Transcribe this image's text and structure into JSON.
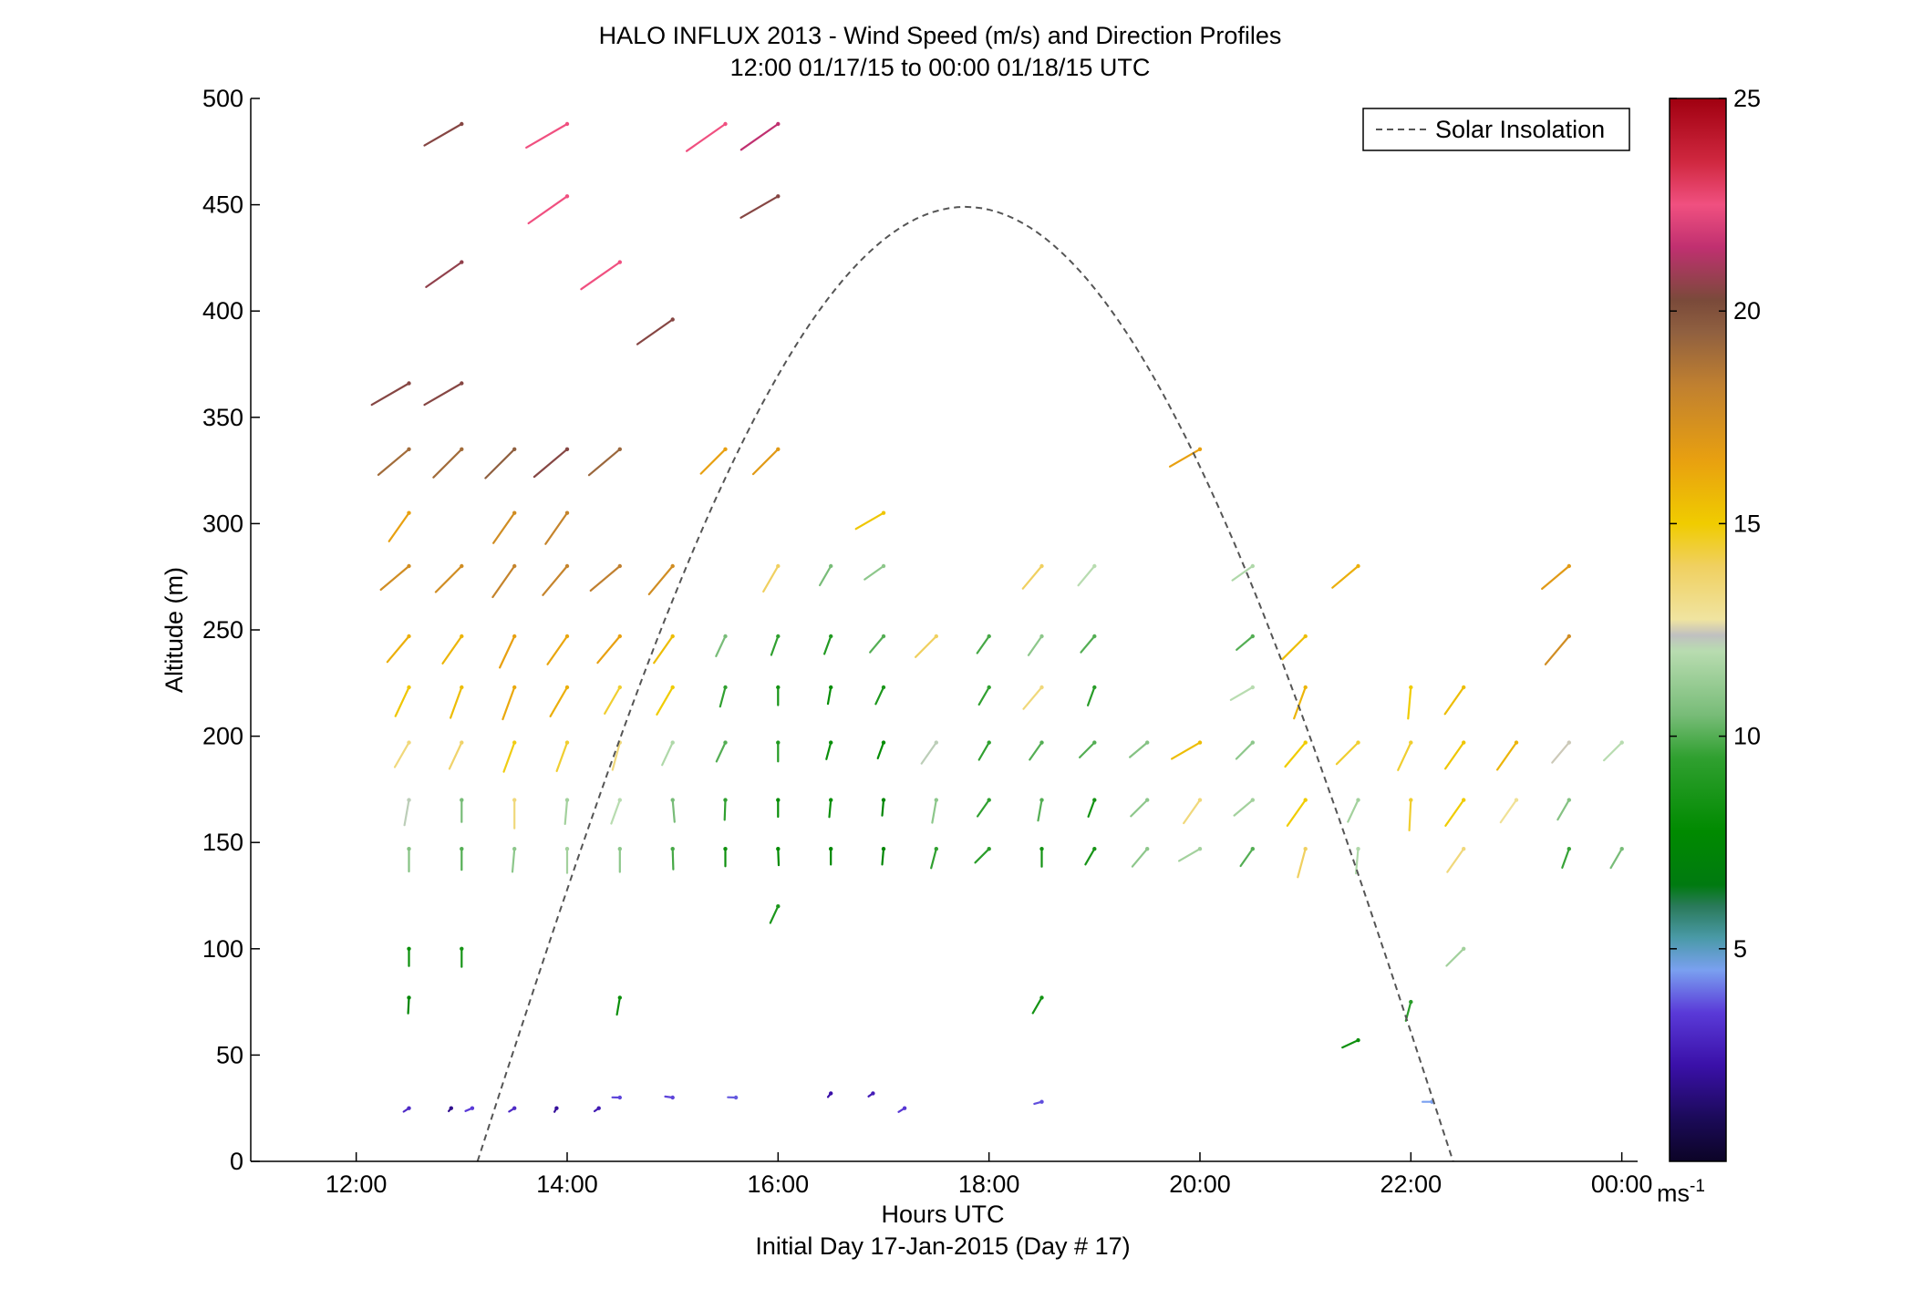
{
  "chart_data": {
    "type": "scatter",
    "title": "HALO INFLUX 2013 - Wind Speed (m/s) and Direction Profiles",
    "subtitle": "12:00 01/17/15 to 00:00 01/18/15  UTC",
    "xlabel": "Hours UTC",
    "xlabel2": "Initial Day 17-Jan-2015 (Day # 17)",
    "ylabel": "Altitude (m)",
    "xlim": [
      11,
      24.15
    ],
    "ylim": [
      0,
      500
    ],
    "xticks": [
      12,
      14,
      16,
      18,
      20,
      22,
      24
    ],
    "xtick_labels": [
      "12:00",
      "14:00",
      "16:00",
      "18:00",
      "20:00",
      "22:00",
      "00:00"
    ],
    "yticks": [
      0,
      50,
      100,
      150,
      200,
      250,
      300,
      350,
      400,
      450,
      500
    ],
    "ytick_labels": [
      "0",
      "50",
      "100",
      "150",
      "200",
      "250",
      "300",
      "350",
      "400",
      "450",
      "500"
    ],
    "colorbar": {
      "range": [
        0,
        25
      ],
      "ticks": [
        5,
        10,
        15,
        20,
        25
      ],
      "tick_labels": [
        "5",
        "10",
        "15",
        "20",
        "25"
      ],
      "unit": "ms",
      "unit_exp": "-1"
    },
    "legend": {
      "position": "top-right",
      "entries": [
        "Solar Insolation"
      ]
    },
    "solar_insolation": {
      "start_hour": 13.15,
      "end_hour": 22.4,
      "peak_altitude": 449,
      "color": "#555555"
    },
    "vectors_note": "each vector: [hour, altitude_m, direction_deg_from_north, speed_ms]",
    "vectors": [
      [
        12.5,
        25,
        237,
        3
      ],
      [
        12.9,
        25,
        220,
        1.8
      ],
      [
        13.1,
        25,
        247,
        3.5
      ],
      [
        13.5,
        25,
        238,
        3
      ],
      [
        13.9,
        25,
        210,
        2
      ],
      [
        14.3,
        25,
        235,
        2.5
      ],
      [
        14.5,
        30,
        272,
        3.6
      ],
      [
        15.0,
        30,
        278,
        3.6
      ],
      [
        15.6,
        30,
        272,
        3.8
      ],
      [
        16.5,
        32,
        218,
        2.2
      ],
      [
        16.9,
        32,
        235,
        2.6
      ],
      [
        17.2,
        25,
        238,
        3.4
      ],
      [
        18.5,
        28,
        255,
        3.7
      ],
      [
        22.2,
        28,
        270,
        4.5
      ],
      [
        12.5,
        77,
        183,
        7.5
      ],
      [
        14.5,
        77,
        190,
        8.2
      ],
      [
        18.5,
        77,
        210,
        8.5
      ],
      [
        22.0,
        75,
        195,
        9.3
      ],
      [
        21.5,
        57,
        245,
        8.3
      ],
      [
        12.5,
        100,
        180,
        8.2
      ],
      [
        13.0,
        100,
        180,
        8.6
      ],
      [
        22.5,
        100,
        225,
        11.5
      ],
      [
        16.0,
        120,
        205,
        8.8
      ],
      [
        12.5,
        147,
        180,
        10.8
      ],
      [
        13.0,
        147,
        180,
        10
      ],
      [
        13.5,
        147,
        185,
        11
      ],
      [
        14.0,
        147,
        180,
        11.5
      ],
      [
        14.5,
        147,
        180,
        11
      ],
      [
        15.0,
        147,
        178,
        9.8
      ],
      [
        15.5,
        147,
        180,
        8.3
      ],
      [
        16.0,
        147,
        178,
        7.8
      ],
      [
        16.5,
        147,
        180,
        7.5
      ],
      [
        17.0,
        147,
        185,
        7.5
      ],
      [
        17.5,
        147,
        195,
        9.5
      ],
      [
        18.0,
        147,
        225,
        9.3
      ],
      [
        18.5,
        147,
        180,
        8.5
      ],
      [
        19.0,
        147,
        210,
        8.6
      ],
      [
        19.5,
        147,
        220,
        11
      ],
      [
        20.0,
        147,
        240,
        11.5
      ],
      [
        20.5,
        147,
        215,
        10
      ],
      [
        21.0,
        147,
        195,
        14
      ],
      [
        21.5,
        147,
        185,
        11.8
      ],
      [
        22.5,
        147,
        215,
        13.5
      ],
      [
        23.5,
        147,
        200,
        9.6
      ],
      [
        24.0,
        147,
        210,
        10.5
      ],
      [
        12.5,
        170,
        190,
        12.2
      ],
      [
        13.0,
        170,
        180,
        10.5
      ],
      [
        13.5,
        170,
        180,
        13.5
      ],
      [
        14.0,
        170,
        185,
        11.5
      ],
      [
        14.5,
        170,
        200,
        12
      ],
      [
        15.0,
        170,
        175,
        10.5
      ],
      [
        15.5,
        170,
        182,
        9.5
      ],
      [
        16.0,
        170,
        180,
        8
      ],
      [
        16.5,
        170,
        185,
        8.2
      ],
      [
        17.0,
        170,
        185,
        7.5
      ],
      [
        17.5,
        170,
        190,
        11
      ],
      [
        18.0,
        170,
        215,
        9.5
      ],
      [
        18.5,
        170,
        190,
        10
      ],
      [
        19.0,
        170,
        200,
        8.5
      ],
      [
        19.5,
        170,
        225,
        11
      ],
      [
        20.0,
        170,
        215,
        13.5
      ],
      [
        20.5,
        170,
        230,
        11.5
      ],
      [
        21.0,
        170,
        215,
        15
      ],
      [
        21.5,
        170,
        205,
        11.5
      ],
      [
        22.0,
        170,
        183,
        14.5
      ],
      [
        22.5,
        170,
        215,
        15
      ],
      [
        23.0,
        170,
        215,
        13
      ],
      [
        23.5,
        170,
        210,
        10.8
      ],
      [
        12.5,
        197,
        210,
        13.5
      ],
      [
        13.0,
        197,
        205,
        13.8
      ],
      [
        13.5,
        197,
        200,
        14.8
      ],
      [
        14.0,
        197,
        200,
        14.5
      ],
      [
        14.5,
        197,
        195,
        13.5
      ],
      [
        15.0,
        197,
        205,
        11.8
      ],
      [
        15.5,
        197,
        205,
        10
      ],
      [
        16.0,
        197,
        180,
        9
      ],
      [
        16.5,
        197,
        195,
        8.2
      ],
      [
        17.0,
        197,
        200,
        8
      ],
      [
        17.5,
        197,
        215,
        12.2
      ],
      [
        18.0,
        197,
        210,
        9.5
      ],
      [
        18.5,
        197,
        215,
        10
      ],
      [
        19.0,
        197,
        225,
        10
      ],
      [
        19.5,
        197,
        230,
        10.8
      ],
      [
        20.0,
        197,
        240,
        15.5
      ],
      [
        20.5,
        197,
        225,
        11
      ],
      [
        21.0,
        197,
        220,
        15
      ],
      [
        21.5,
        197,
        225,
        14.5
      ],
      [
        22.0,
        197,
        205,
        14.5
      ],
      [
        22.5,
        197,
        215,
        15.2
      ],
      [
        23.0,
        197,
        215,
        15.8
      ],
      [
        23.5,
        197,
        220,
        12.5
      ],
      [
        24.0,
        197,
        225,
        12
      ],
      [
        12.5,
        223,
        205,
        15.2
      ],
      [
        13.0,
        223,
        200,
        15.5
      ],
      [
        13.5,
        223,
        200,
        16.2
      ],
      [
        14.0,
        223,
        210,
        16
      ],
      [
        14.5,
        223,
        210,
        14.5
      ],
      [
        15.0,
        223,
        210,
        15
      ],
      [
        15.5,
        223,
        195,
        9.5
      ],
      [
        16.0,
        223,
        180,
        8.5
      ],
      [
        16.5,
        223,
        190,
        8
      ],
      [
        17.0,
        223,
        205,
        8.8
      ],
      [
        18.0,
        223,
        210,
        9.5
      ],
      [
        18.5,
        223,
        220,
        13.5
      ],
      [
        19.0,
        223,
        200,
        9.2
      ],
      [
        20.5,
        223,
        240,
        12
      ],
      [
        21.0,
        223,
        200,
        15.8
      ],
      [
        22.0,
        223,
        185,
        15
      ],
      [
        22.5,
        223,
        215,
        15.5
      ],
      [
        12.5,
        247,
        220,
        16
      ],
      [
        13.0,
        247,
        215,
        15.8
      ],
      [
        13.5,
        247,
        205,
        16.5
      ],
      [
        14.0,
        247,
        215,
        16.3
      ],
      [
        14.5,
        247,
        220,
        16.5
      ],
      [
        15.0,
        247,
        215,
        15.5
      ],
      [
        15.5,
        247,
        205,
        10.5
      ],
      [
        16.0,
        247,
        200,
        9.5
      ],
      [
        16.5,
        247,
        200,
        9
      ],
      [
        17.0,
        247,
        220,
        10
      ],
      [
        17.5,
        247,
        225,
        14
      ],
      [
        18.0,
        247,
        215,
        9.8
      ],
      [
        18.5,
        247,
        215,
        11
      ],
      [
        19.0,
        247,
        220,
        10
      ],
      [
        20.5,
        247,
        230,
        10
      ],
      [
        21.0,
        247,
        225,
        15.5
      ],
      [
        23.5,
        247,
        220,
        17.5
      ],
      [
        12.5,
        280,
        230,
        17.5
      ],
      [
        13.0,
        280,
        225,
        17.5
      ],
      [
        13.5,
        280,
        215,
        18
      ],
      [
        14.0,
        280,
        220,
        18
      ],
      [
        14.5,
        280,
        230,
        18.2
      ],
      [
        15.0,
        280,
        220,
        17.5
      ],
      [
        16.0,
        280,
        210,
        14
      ],
      [
        16.5,
        280,
        210,
        10.5
      ],
      [
        17.0,
        280,
        235,
        11
      ],
      [
        18.5,
        280,
        220,
        14
      ],
      [
        19.0,
        280,
        220,
        12
      ],
      [
        20.5,
        280,
        235,
        11.8
      ],
      [
        21.5,
        280,
        230,
        16
      ],
      [
        23.5,
        280,
        230,
        16.8
      ],
      [
        12.5,
        305,
        215,
        16.5
      ],
      [
        13.5,
        305,
        215,
        17.5
      ],
      [
        14.0,
        305,
        215,
        18
      ],
      [
        17.0,
        305,
        240,
        15.2
      ],
      [
        12.5,
        335,
        230,
        19
      ],
      [
        13.0,
        335,
        225,
        19
      ],
      [
        13.5,
        335,
        225,
        19.5
      ],
      [
        14.0,
        335,
        230,
        20.5
      ],
      [
        14.5,
        335,
        230,
        19.2
      ],
      [
        15.5,
        335,
        225,
        16.5
      ],
      [
        16.0,
        335,
        225,
        16.8
      ],
      [
        20.0,
        335,
        240,
        16.5
      ],
      [
        12.5,
        366,
        240,
        20.5
      ],
      [
        13.0,
        366,
        240,
        20.5
      ],
      [
        15.0,
        396,
        235,
        20.5
      ],
      [
        13.0,
        423,
        235,
        20.7
      ],
      [
        14.5,
        423,
        235,
        22.5
      ],
      [
        14.0,
        454,
        235,
        22.5
      ],
      [
        16.0,
        454,
        240,
        20.5
      ],
      [
        13.0,
        488,
        240,
        20.5
      ],
      [
        14.0,
        488,
        240,
        22.5
      ],
      [
        15.5,
        488,
        235,
        22.5
      ],
      [
        16.0,
        488,
        235,
        21.5
      ]
    ]
  }
}
